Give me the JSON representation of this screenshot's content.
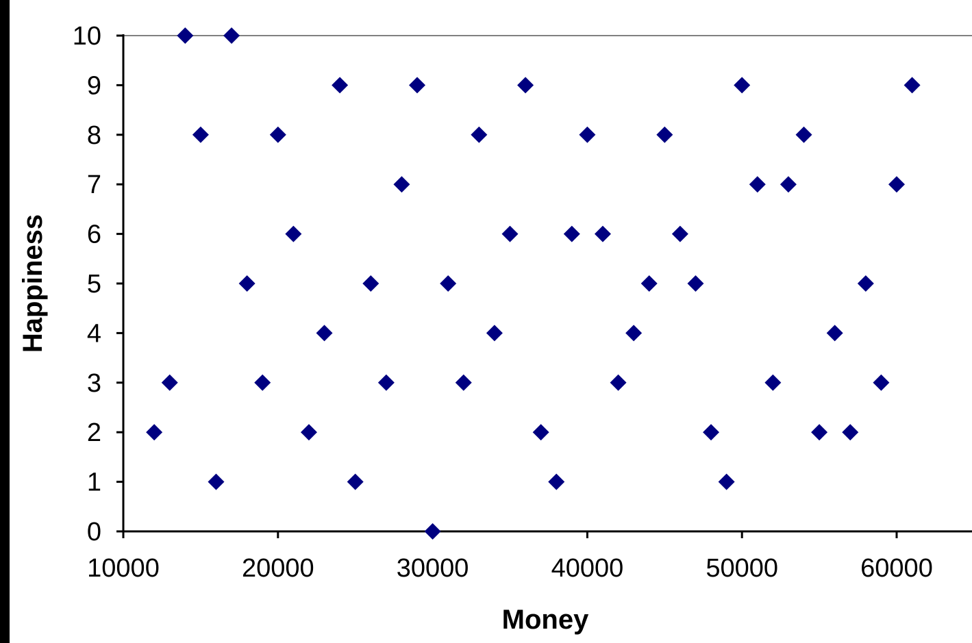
{
  "chart_data": {
    "type": "scatter",
    "xlabel": "Money",
    "ylabel": "Happiness",
    "xlim": [
      10000,
      65000
    ],
    "ylim": [
      0,
      10
    ],
    "x_ticks": [
      10000,
      20000,
      30000,
      40000,
      50000,
      60000
    ],
    "y_ticks": [
      0,
      1,
      2,
      3,
      4,
      5,
      6,
      7,
      8,
      9,
      10
    ],
    "grid": "horizontal line at 10 only",
    "legend": "none",
    "marker": "diamond",
    "colors": {
      "marker": "#000080",
      "axis": "#000000",
      "gridline": "#808080",
      "plot_background": "#ffffff",
      "border": "#000000"
    },
    "series": [
      {
        "points": [
          [
            12000,
            2
          ],
          [
            13000,
            3
          ],
          [
            14000,
            10
          ],
          [
            15000,
            8
          ],
          [
            16000,
            1
          ],
          [
            17000,
            10
          ],
          [
            18000,
            5
          ],
          [
            19000,
            3
          ],
          [
            20000,
            8
          ],
          [
            21000,
            6
          ],
          [
            22000,
            2
          ],
          [
            23000,
            4
          ],
          [
            24000,
            9
          ],
          [
            25000,
            1
          ],
          [
            26000,
            5
          ],
          [
            27000,
            3
          ],
          [
            28000,
            7
          ],
          [
            29000,
            9
          ],
          [
            30000,
            0
          ],
          [
            31000,
            5
          ],
          [
            32000,
            3
          ],
          [
            33000,
            8
          ],
          [
            34000,
            4
          ],
          [
            35000,
            6
          ],
          [
            36000,
            9
          ],
          [
            37000,
            2
          ],
          [
            38000,
            1
          ],
          [
            39000,
            6
          ],
          [
            40000,
            8
          ],
          [
            41000,
            6
          ],
          [
            42000,
            3
          ],
          [
            43000,
            4
          ],
          [
            44000,
            5
          ],
          [
            45000,
            8
          ],
          [
            46000,
            6
          ],
          [
            47000,
            5
          ],
          [
            48000,
            2
          ],
          [
            49000,
            1
          ],
          [
            50000,
            9
          ],
          [
            51000,
            7
          ],
          [
            52000,
            3
          ],
          [
            53000,
            7
          ],
          [
            54000,
            8
          ],
          [
            55000,
            2
          ],
          [
            56000,
            4
          ],
          [
            57000,
            2
          ],
          [
            58000,
            5
          ],
          [
            59000,
            3
          ],
          [
            60000,
            7
          ],
          [
            61000,
            9
          ]
        ]
      }
    ]
  }
}
